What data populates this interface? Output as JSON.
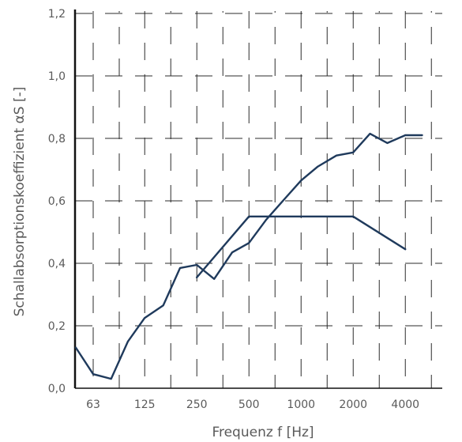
{
  "chart_data": {
    "type": "line",
    "xlabel": "Frequenz f [Hz]",
    "ylabel": "Schallabsorptionskoeffizient αS [-]",
    "x_scale": "log2",
    "xlim": [
      50,
      5800
    ],
    "ylim": [
      0,
      1.2
    ],
    "x_ticks": [
      63,
      125,
      250,
      500,
      1000,
      2000,
      4000
    ],
    "x_tick_labels": [
      "63",
      "125",
      "250",
      "500",
      "1000",
      "2000",
      "4000"
    ],
    "y_ticks": [
      0,
      0.2,
      0.4,
      0.6,
      0.8,
      1.0,
      1.2
    ],
    "y_tick_labels": [
      "0,0",
      "0,2",
      "0,4",
      "0,6",
      "0,8",
      "1,0",
      "1,2"
    ],
    "grid": true,
    "line_color": "#1f3a5c",
    "series": [
      {
        "x": [
          50,
          63,
          80,
          100,
          125,
          160,
          200,
          250,
          315,
          400,
          500,
          630,
          800,
          1000,
          1250,
          1600,
          2000,
          2500,
          3150,
          4000,
          5000
        ],
        "y": [
          0.13,
          0.045,
          0.03,
          0.15,
          0.225,
          0.265,
          0.385,
          0.395,
          0.35,
          0.435,
          0.465,
          0.54,
          0.605,
          0.665,
          0.71,
          0.745,
          0.755,
          0.815,
          0.785,
          0.81,
          0.81
        ]
      },
      {
        "x": [
          250,
          500,
          2000,
          4000
        ],
        "y": [
          0.355,
          0.55,
          0.55,
          0.445
        ]
      }
    ]
  }
}
